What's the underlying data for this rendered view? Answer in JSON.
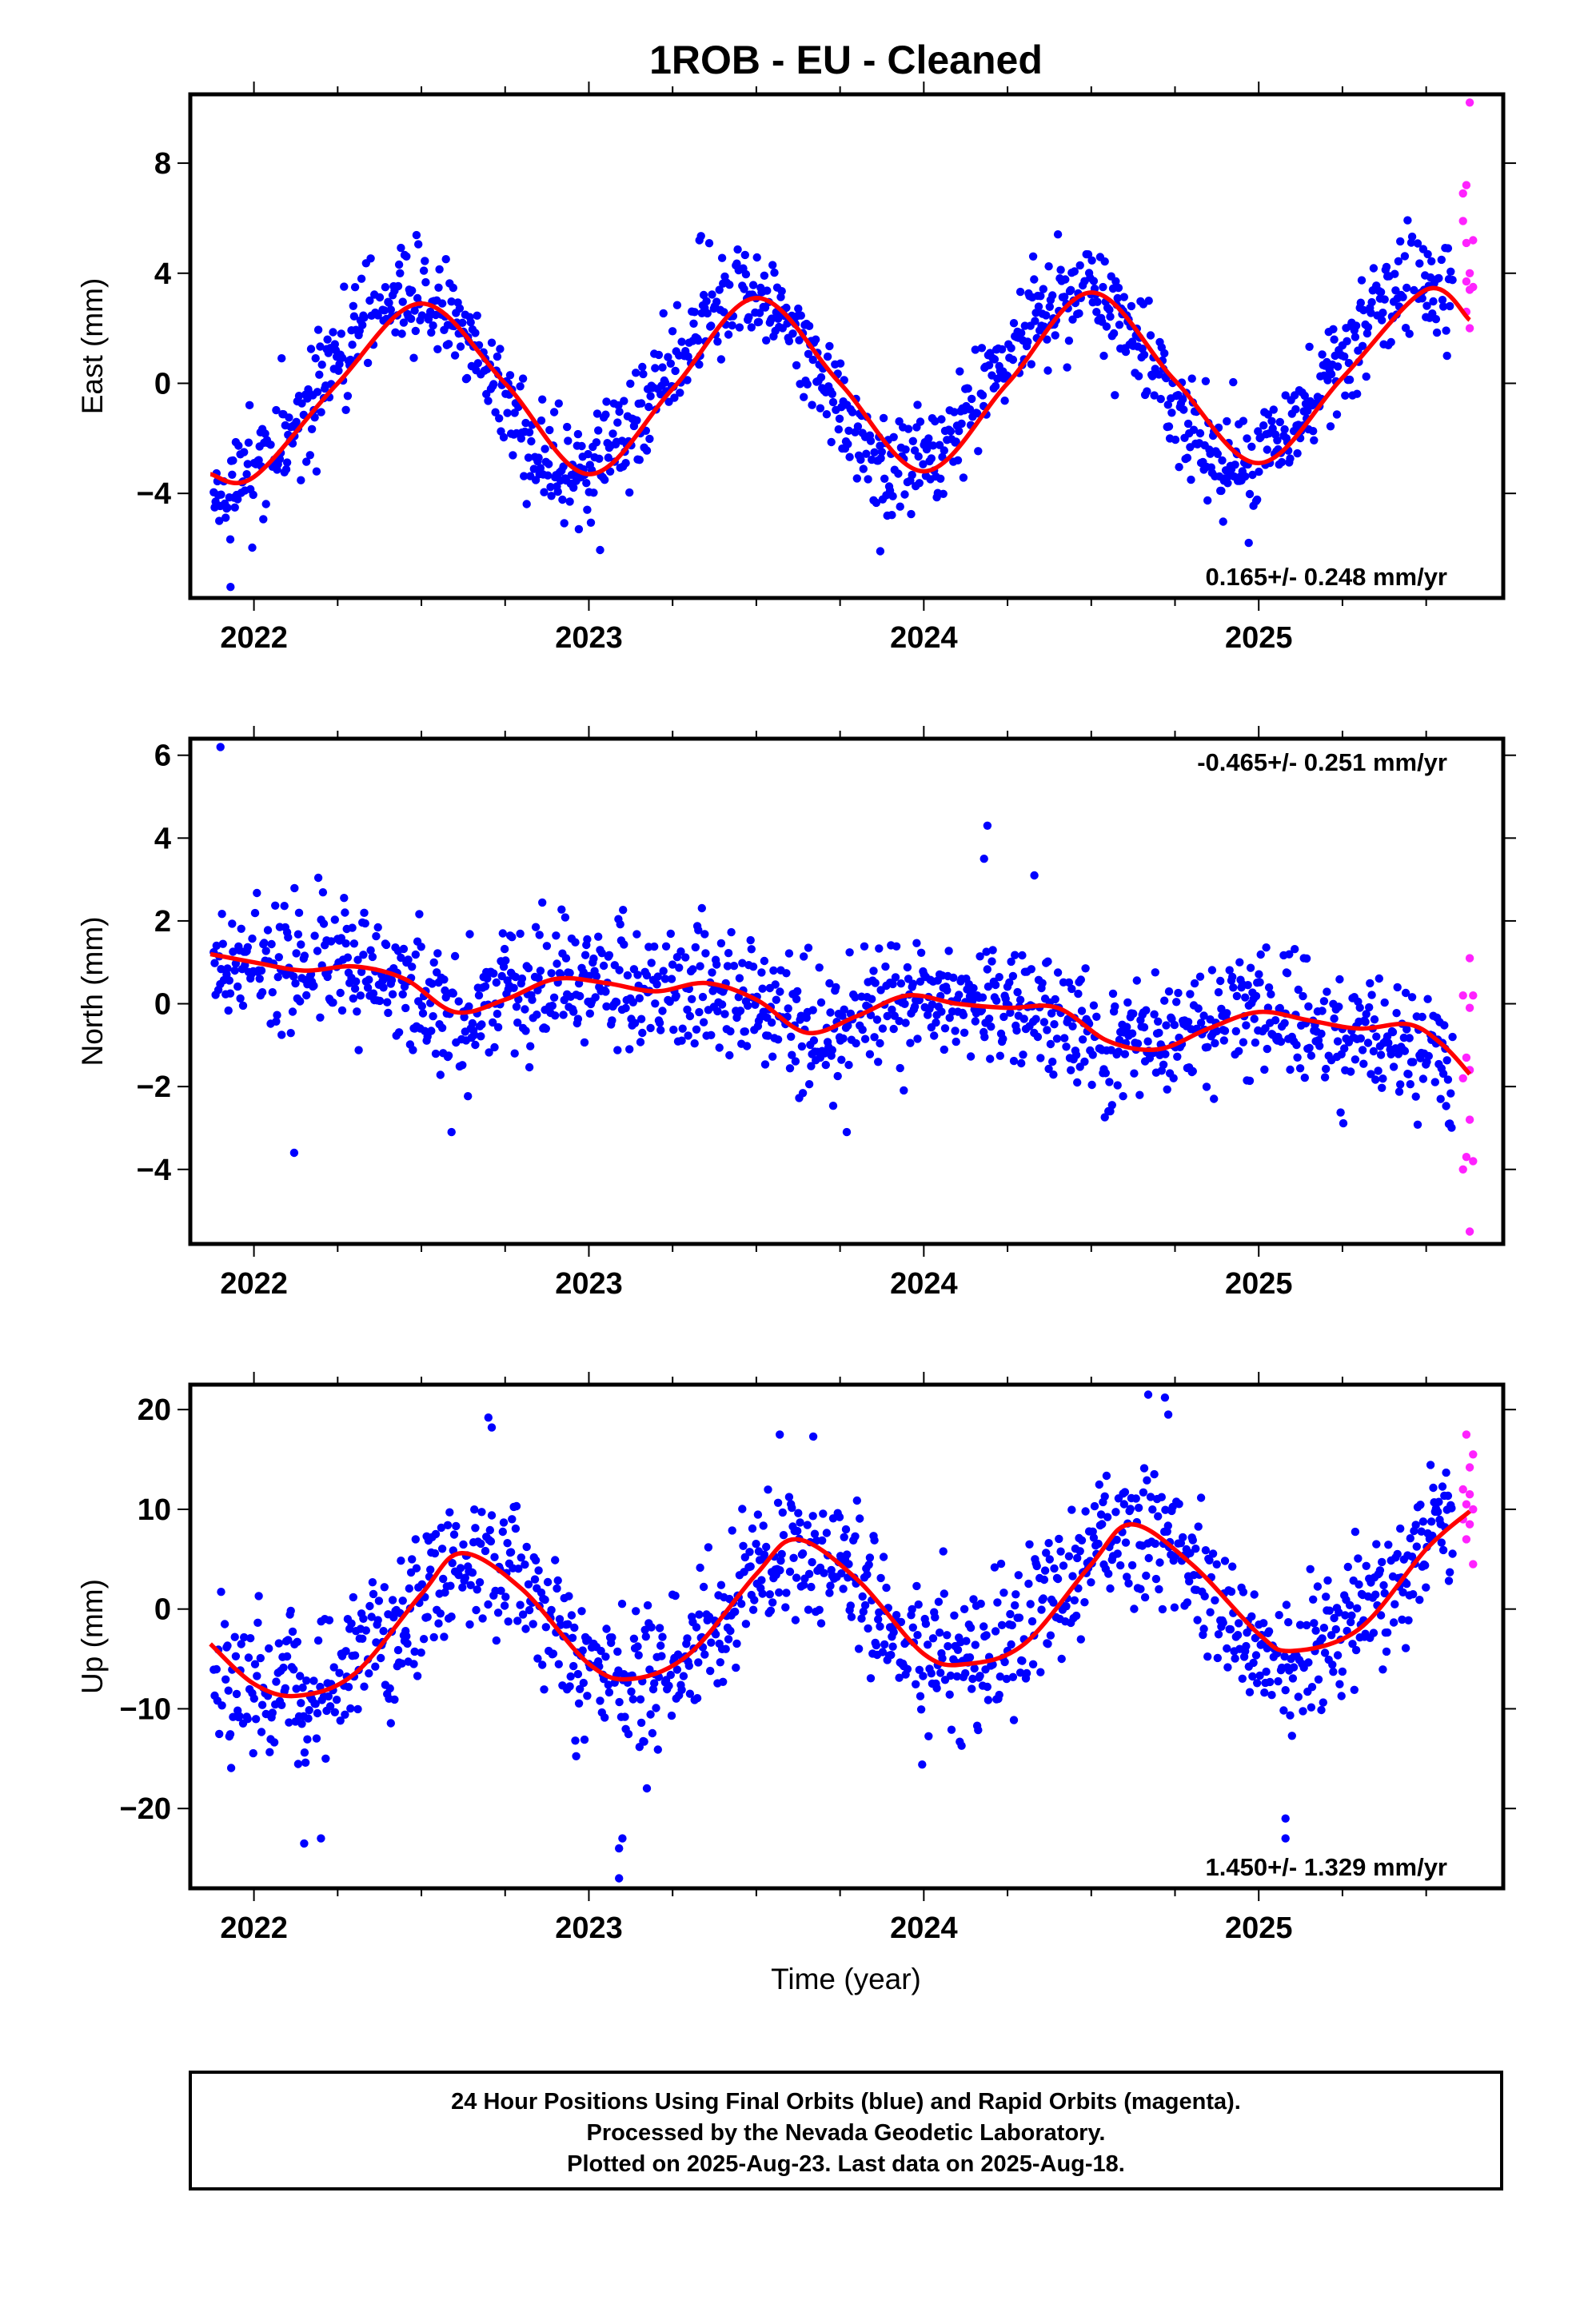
{
  "page": {
    "title": "1ROB  - EU - Cleaned",
    "xaxis_label": "Time (year)",
    "footer_lines": [
      "24 Hour Positions Using Final Orbits (blue) and Rapid Orbits (magenta).",
      "Processed by the Nevada Geodetic Laboratory.",
      "Plotted on 2025-Aug-23. Last data on 2025-Aug-18."
    ]
  },
  "colors": {
    "final": "#0000ff",
    "rapid": "#ff22ff",
    "fit": "#ff0000",
    "frame": "#000000"
  },
  "chart_data": [
    {
      "type": "scatter",
      "id": "east",
      "ylabel": "East (mm)",
      "rate": "0.165+/- 0.248 mm/yr",
      "rate_position": "bottom-right",
      "xlim": [
        2021.81,
        2025.73
      ],
      "ylim": [
        -7.8,
        10.5
      ],
      "xticks": [
        2022,
        2023,
        2024,
        2025
      ],
      "xtick_labels": [
        "2022",
        "2023",
        "2024",
        "2025"
      ],
      "yticks": [
        -4,
        0,
        4,
        8
      ],
      "ytick_labels": [
        "−4",
        "0",
        "4",
        "8"
      ],
      "grid": false,
      "fit_curve": {
        "x": [
          2021.87,
          2022.0,
          2022.25,
          2022.5,
          2022.75,
          2023.0,
          2023.25,
          2023.5,
          2023.75,
          2024.0,
          2024.25,
          2024.5,
          2024.75,
          2025.0,
          2025.25,
          2025.5,
          2025.63
        ],
        "y": [
          -3.3,
          -3.4,
          0.0,
          2.9,
          0.0,
          -3.3,
          -0.2,
          3.1,
          0.0,
          -3.2,
          0.0,
          3.3,
          0.1,
          -2.9,
          0.2,
          3.4,
          2.3
        ]
      },
      "series": [
        {
          "name": "Final Orbits",
          "cloud": {
            "x": [
              2021.88,
              2021.92,
              2021.96,
              2022.0,
              2022.05,
              2022.1,
              2022.15,
              2022.2,
              2022.25,
              2022.3,
              2022.35,
              2022.4,
              2022.45,
              2022.5,
              2022.55,
              2022.6,
              2022.65,
              2022.7,
              2022.75,
              2022.8,
              2022.85,
              2022.9,
              2022.95,
              2023.0,
              2023.05,
              2023.1,
              2023.15,
              2023.2,
              2023.25,
              2023.3,
              2023.35,
              2023.4,
              2023.45,
              2023.5,
              2023.55,
              2023.6,
              2023.65,
              2023.7,
              2023.75,
              2023.8,
              2023.85,
              2023.9,
              2023.95,
              2024.0,
              2024.05,
              2024.1,
              2024.15,
              2024.2,
              2024.25,
              2024.3,
              2024.35,
              2024.4,
              2024.45,
              2024.5,
              2024.55,
              2024.6,
              2024.65,
              2024.7,
              2024.75,
              2024.8,
              2024.85,
              2024.9,
              2024.95,
              2025.0,
              2025.05,
              2025.1,
              2025.15,
              2025.2,
              2025.25,
              2025.3,
              2025.35,
              2025.4,
              2025.45,
              2025.5,
              2025.55,
              2025.58
            ],
            "y": [
              -3.8,
              -3.9,
              -4.0,
              -3.4,
              -2.6,
              -1.8,
              -1.0,
              -0.1,
              0.8,
              1.8,
              2.5,
              3.0,
              3.1,
              2.9,
              2.6,
              2.0,
              1.2,
              0.3,
              -0.8,
              -1.9,
              -2.7,
              -3.1,
              -3.2,
              -3.0,
              -2.6,
              -2.0,
              -1.3,
              -0.5,
              0.5,
              1.5,
              2.3,
              2.9,
              3.2,
              3.1,
              2.7,
              2.0,
              1.1,
              0.1,
              -1.0,
              -2.0,
              -2.8,
              -3.2,
              -3.3,
              -3.1,
              -2.5,
              -1.7,
              -0.8,
              0.2,
              1.2,
              2.1,
              2.8,
              3.2,
              3.3,
              3.2,
              2.8,
              2.2,
              1.3,
              0.3,
              -0.8,
              -1.8,
              -2.6,
              -3.0,
              -3.1,
              -2.8,
              -2.2,
              -1.5,
              -0.7,
              0.3,
              1.2,
              2.0,
              2.7,
              3.1,
              3.3,
              3.4,
              3.2,
              3.0
            ],
            "scatter": 1.1
          },
          "points": [
            {
              "x": 2021.93,
              "y": -7.4
            },
            {
              "x": 2023.87,
              "y": -6.1
            },
            {
              "x": 2023.33,
              "y": 5.2
            },
            {
              "x": 2022.97,
              "y": -5.3
            },
            {
              "x": 2024.97,
              "y": -5.8
            }
          ]
        },
        {
          "name": "Rapid Orbits",
          "points": [
            {
              "x": 2025.63,
              "y": 10.2
            },
            {
              "x": 2025.62,
              "y": 7.2
            },
            {
              "x": 2025.61,
              "y": 6.9
            },
            {
              "x": 2025.61,
              "y": 5.9
            },
            {
              "x": 2025.64,
              "y": 5.2
            },
            {
              "x": 2025.62,
              "y": 5.1
            },
            {
              "x": 2025.63,
              "y": 4.0
            },
            {
              "x": 2025.62,
              "y": 3.7
            },
            {
              "x": 2025.64,
              "y": 3.5
            },
            {
              "x": 2025.63,
              "y": 3.4
            },
            {
              "x": 2025.62,
              "y": 2.6
            },
            {
              "x": 2025.63,
              "y": 2.0
            }
          ]
        }
      ]
    },
    {
      "type": "scatter",
      "id": "north",
      "ylabel": "North (mm)",
      "rate": "-0.465+/- 0.251 mm/yr",
      "rate_position": "top-right",
      "xlim": [
        2021.81,
        2025.73
      ],
      "ylim": [
        -5.8,
        6.4
      ],
      "xticks": [
        2022,
        2023,
        2024,
        2025
      ],
      "xtick_labels": [
        "2022",
        "2023",
        "2024",
        "2025"
      ],
      "yticks": [
        -4,
        -2,
        0,
        2,
        4,
        6
      ],
      "ytick_labels": [
        "−4",
        "−2",
        "0",
        "2",
        "4",
        "6"
      ],
      "grid": false,
      "fit_curve": {
        "x": [
          2021.87,
          2022.0,
          2022.15,
          2022.3,
          2022.45,
          2022.6,
          2022.75,
          2022.9,
          2023.05,
          2023.2,
          2023.35,
          2023.5,
          2023.65,
          2023.8,
          2023.95,
          2024.1,
          2024.25,
          2024.4,
          2024.55,
          2024.7,
          2024.85,
          2025.0,
          2025.15,
          2025.3,
          2025.45,
          2025.55,
          2025.63
        ],
        "y": [
          1.2,
          1.0,
          0.8,
          0.9,
          0.6,
          -0.2,
          0.1,
          0.6,
          0.5,
          0.3,
          0.5,
          0.1,
          -0.7,
          -0.3,
          0.2,
          0.0,
          -0.1,
          -0.1,
          -0.9,
          -1.1,
          -0.6,
          -0.2,
          -0.4,
          -0.6,
          -0.5,
          -1.0,
          -1.7
        ]
      },
      "series": [
        {
          "name": "Final Orbits",
          "cloud": {
            "x": [
              2021.88,
              2021.95,
              2022.05,
              2022.15,
              2022.25,
              2022.35,
              2022.45,
              2022.55,
              2022.65,
              2022.75,
              2022.85,
              2022.95,
              2023.05,
              2023.15,
              2023.25,
              2023.35,
              2023.45,
              2023.55,
              2023.65,
              2023.75,
              2023.85,
              2023.95,
              2024.05,
              2024.15,
              2024.25,
              2024.35,
              2024.45,
              2024.55,
              2024.65,
              2024.75,
              2024.85,
              2024.95,
              2025.05,
              2025.15,
              2025.25,
              2025.35,
              2025.45,
              2025.55,
              2025.58
            ],
            "y": [
              1.2,
              1.1,
              0.9,
              0.8,
              0.9,
              0.7,
              0.3,
              -0.2,
              -0.1,
              0.3,
              0.6,
              0.6,
              0.4,
              0.3,
              0.4,
              0.4,
              0.2,
              -0.3,
              -0.6,
              -0.4,
              0.1,
              0.2,
              0.0,
              -0.1,
              -0.1,
              -0.2,
              -0.6,
              -1.0,
              -1.0,
              -0.8,
              -0.4,
              -0.2,
              -0.3,
              -0.5,
              -0.6,
              -0.6,
              -0.9,
              -1.4,
              -1.6
            ],
            "scatter": 0.9
          },
          "points": [
            {
              "x": 2021.9,
              "y": 6.2
            },
            {
              "x": 2024.19,
              "y": 4.3
            },
            {
              "x": 2024.18,
              "y": 3.5
            },
            {
              "x": 2024.33,
              "y": 3.1
            },
            {
              "x": 2022.12,
              "y": -3.6
            },
            {
              "x": 2023.77,
              "y": -3.1
            },
            {
              "x": 2022.59,
              "y": -3.1
            }
          ]
        },
        {
          "name": "Rapid Orbits",
          "points": [
            {
              "x": 2025.63,
              "y": 1.1
            },
            {
              "x": 2025.61,
              "y": 0.2
            },
            {
              "x": 2025.64,
              "y": 0.2
            },
            {
              "x": 2025.63,
              "y": -0.1
            },
            {
              "x": 2025.62,
              "y": -1.3
            },
            {
              "x": 2025.63,
              "y": -1.6
            },
            {
              "x": 2025.61,
              "y": -1.8
            },
            {
              "x": 2025.63,
              "y": -2.8
            },
            {
              "x": 2025.62,
              "y": -3.7
            },
            {
              "x": 2025.64,
              "y": -3.8
            },
            {
              "x": 2025.61,
              "y": -4.0
            },
            {
              "x": 2025.63,
              "y": -5.5
            }
          ]
        }
      ]
    },
    {
      "type": "scatter",
      "id": "up",
      "ylabel": "Up (mm)",
      "rate": "1.450+/- 1.329 mm/yr",
      "rate_position": "bottom-right",
      "xlim": [
        2021.81,
        2025.73
      ],
      "ylim": [
        -28,
        22.5
      ],
      "xticks": [
        2022,
        2023,
        2024,
        2025
      ],
      "xtick_labels": [
        "2022",
        "2023",
        "2024",
        "2025"
      ],
      "yticks": [
        -20,
        -10,
        0,
        10,
        20
      ],
      "ytick_labels": [
        "−20",
        "−10",
        "0",
        "10",
        "20"
      ],
      "grid": false,
      "fit_curve": {
        "x": [
          2021.87,
          2022.0,
          2022.13,
          2022.3,
          2022.5,
          2022.62,
          2022.8,
          2023.0,
          2023.13,
          2023.3,
          2023.5,
          2023.62,
          2023.8,
          2024.0,
          2024.13,
          2024.3,
          2024.5,
          2024.62,
          2024.8,
          2025.0,
          2025.1,
          2025.3,
          2025.5,
          2025.63
        ],
        "y": [
          -3.5,
          -7.5,
          -8.7,
          -6.5,
          1.5,
          5.6,
          2.0,
          -5.5,
          -7.0,
          -4.5,
          3.5,
          7.0,
          3.0,
          -4.5,
          -5.5,
          -3.5,
          4.5,
          8.5,
          4.5,
          -2.5,
          -4.2,
          -2.0,
          6.0,
          9.8
        ]
      },
      "series": [
        {
          "name": "Final Orbits",
          "cloud": {
            "x": [
              2021.88,
              2021.95,
              2022.05,
              2022.15,
              2022.25,
              2022.35,
              2022.45,
              2022.55,
              2022.65,
              2022.75,
              2022.85,
              2022.95,
              2023.05,
              2023.15,
              2023.25,
              2023.35,
              2023.45,
              2023.55,
              2023.65,
              2023.75,
              2023.85,
              2023.95,
              2024.05,
              2024.15,
              2024.25,
              2024.35,
              2024.45,
              2024.55,
              2024.65,
              2024.75,
              2024.85,
              2024.95,
              2025.05,
              2025.15,
              2025.25,
              2025.35,
              2025.45,
              2025.55,
              2025.58
            ],
            "y": [
              -4.5,
              -6.5,
              -8.3,
              -8.6,
              -7.2,
              -4.3,
              -0.5,
              3.5,
              5.5,
              4.5,
              0.5,
              -3.8,
              -6.5,
              -6.8,
              -5.5,
              -2.5,
              1.8,
              5.5,
              6.8,
              4.5,
              0.5,
              -3.5,
              -5.3,
              -5.2,
              -3.8,
              -0.5,
              3.5,
              7.0,
              8.2,
              6.0,
              1.5,
              -2.0,
              -3.8,
              -4.0,
              -2.5,
              0.8,
              4.5,
              8.0,
              9.0
            ],
            "scatter": 4.2
          },
          "points": [
            {
              "x": 2023.09,
              "y": -27
            },
            {
              "x": 2023.09,
              "y": -24
            },
            {
              "x": 2023.1,
              "y": -23
            },
            {
              "x": 2022.15,
              "y": -23.5
            },
            {
              "x": 2022.2,
              "y": -23
            },
            {
              "x": 2025.08,
              "y": -23
            },
            {
              "x": 2025.08,
              "y": -21
            },
            {
              "x": 2024.67,
              "y": 21.5
            },
            {
              "x": 2024.72,
              "y": 21.2
            },
            {
              "x": 2024.73,
              "y": 19.5
            },
            {
              "x": 2022.7,
              "y": 19.2
            },
            {
              "x": 2022.71,
              "y": 18.2
            },
            {
              "x": 2023.57,
              "y": 17.5
            },
            {
              "x": 2023.67,
              "y": 17.3
            }
          ]
        },
        {
          "name": "Rapid Orbits",
          "points": [
            {
              "x": 2025.62,
              "y": 17.5
            },
            {
              "x": 2025.64,
              "y": 15.5
            },
            {
              "x": 2025.63,
              "y": 14.2
            },
            {
              "x": 2025.61,
              "y": 12.0
            },
            {
              "x": 2025.63,
              "y": 11.5
            },
            {
              "x": 2025.62,
              "y": 10.5
            },
            {
              "x": 2025.64,
              "y": 10.0
            },
            {
              "x": 2025.61,
              "y": 9.0
            },
            {
              "x": 2025.63,
              "y": 8.5
            },
            {
              "x": 2025.62,
              "y": 7.0
            },
            {
              "x": 2025.64,
              "y": 4.5
            }
          ]
        }
      ]
    }
  ]
}
